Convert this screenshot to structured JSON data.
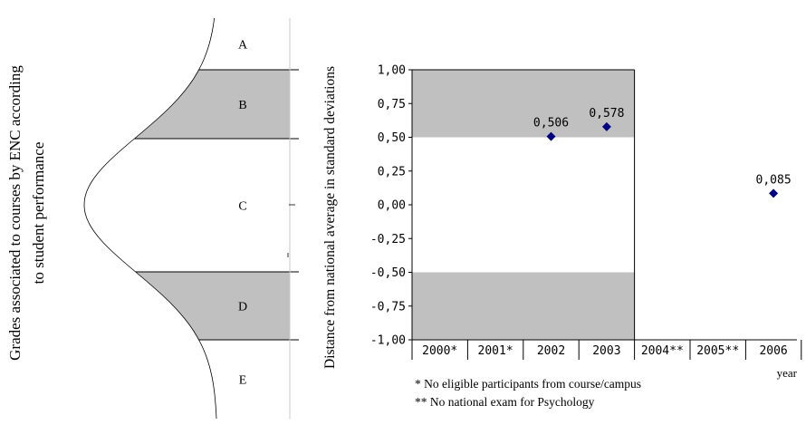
{
  "left_panel": {
    "ylabel_line1": "Grades associated to courses by ENC according",
    "ylabel_line2": "to student performance",
    "grades": [
      "A",
      "B",
      "C",
      "D",
      "E"
    ],
    "band_color": "#c0c0c0"
  },
  "chart_data": {
    "type": "scatter",
    "ylabel": "Distance from national average in standard deviations",
    "xlabel": "year",
    "categories": [
      "2000*",
      "2001*",
      "2002",
      "2003",
      "2004**",
      "2005**",
      "2006"
    ],
    "ylim": [
      -1.0,
      1.0
    ],
    "yticks": [
      -1.0,
      -0.75,
      -0.5,
      -0.25,
      0.0,
      0.25,
      0.5,
      0.75,
      1.0
    ],
    "ytick_labels": [
      "-1,00",
      "-0,75",
      "-0,50",
      "-0,25",
      "0,00",
      "0,25",
      "0,50",
      "0,75",
      "1,00"
    ],
    "shaded_bands": [
      [
        0.5,
        1.0
      ],
      [
        -1.0,
        -0.5
      ]
    ],
    "shaded_range": [
      "2000*",
      "2003"
    ],
    "points": [
      {
        "category": "2002",
        "value": 0.506,
        "label": "0,506"
      },
      {
        "category": "2003",
        "value": 0.578,
        "label": "0,578"
      },
      {
        "category": "2006",
        "value": 0.085,
        "label": "0,085"
      }
    ],
    "marker_color": "#000080",
    "band_color": "#c0c0c0",
    "grid": false,
    "footnotes": [
      "* No eligible participants from course/campus",
      "** No national exam for Psychology"
    ]
  }
}
